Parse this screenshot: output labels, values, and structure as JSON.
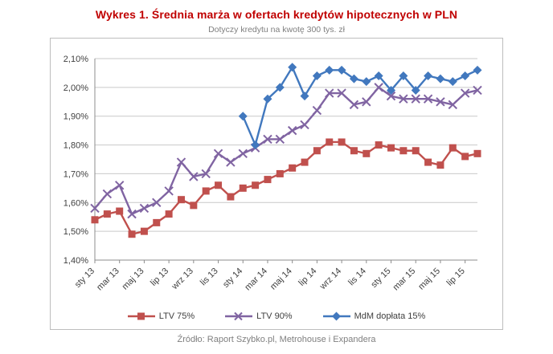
{
  "title": "Wykres 1. Średnia marża w ofertach kredytów hipotecznych w PLN",
  "subtitle": "Dotyczy kredytu na kwotę 300 tys. zł",
  "source": "Źródło: Raport Szybko.pl, Metrohouse i Expandera",
  "colors": {
    "title": "#c00000",
    "gridline": "#c9c9c9",
    "axis": "#8c8c8c",
    "tick_text": "#404040"
  },
  "chart_data": {
    "type": "line",
    "title": "Wykres 1. Średnia marża w ofertach kredytów hipotecznych w PLN",
    "subtitle": "Dotyczy kredytu na kwotę 300 tys. zł",
    "ylabel": "",
    "xlabel": "",
    "ylim": [
      1.4,
      2.1
    ],
    "grid": "horizontal",
    "legend_position": "bottom",
    "y_tick_labels": [
      "2,10%",
      "2,00%",
      "1,90%",
      "1,80%",
      "1,70%",
      "1,60%",
      "1,50%",
      "1,40%"
    ],
    "y_tick_values": [
      2.1,
      2.0,
      1.9,
      1.8,
      1.7,
      1.6,
      1.5,
      1.4
    ],
    "x_months": [
      "sty 13",
      "lut 13",
      "mar 13",
      "kwi 13",
      "maj 13",
      "cze 13",
      "lip 13",
      "sie 13",
      "wrz 13",
      "paź 13",
      "lis 13",
      "gru 13",
      "sty 14",
      "lut 14",
      "mar 14",
      "kwi 14",
      "maj 14",
      "cze 14",
      "lip 14",
      "sie 14",
      "wrz 14",
      "paź 14",
      "lis 14",
      "gru 14",
      "sty 15",
      "lut 15",
      "mar 15",
      "kwi 15",
      "maj 15",
      "cze 15",
      "lip 15",
      "sie 15"
    ],
    "x_tick_labels": [
      "sty 13",
      "mar 13",
      "maj 13",
      "lip 13",
      "wrz 13",
      "lis 13",
      "sty 14",
      "mar 14",
      "maj 14",
      "lip 14",
      "wrz 14",
      "lis 14",
      "sty 15",
      "mar 15",
      "maj 15",
      "lip 15"
    ],
    "x_tick_every": 2,
    "series": [
      {
        "name": "LTV 75%",
        "color": "#c0504d",
        "marker": "square",
        "values": [
          1.54,
          1.56,
          1.57,
          1.49,
          1.5,
          1.53,
          1.56,
          1.61,
          1.59,
          1.64,
          1.66,
          1.62,
          1.65,
          1.66,
          1.68,
          1.7,
          1.72,
          1.74,
          1.78,
          1.81,
          1.81,
          1.78,
          1.77,
          1.8,
          1.79,
          1.78,
          1.78,
          1.74,
          1.73,
          1.79,
          1.76,
          1.77
        ]
      },
      {
        "name": "LTV 90%",
        "color": "#8064a2",
        "marker": "x",
        "values": [
          1.58,
          1.63,
          1.66,
          1.56,
          1.58,
          1.6,
          1.64,
          1.74,
          1.69,
          1.7,
          1.77,
          1.74,
          1.77,
          1.79,
          1.82,
          1.82,
          1.85,
          1.87,
          1.92,
          1.98,
          1.98,
          1.94,
          1.95,
          2.0,
          1.97,
          1.96,
          1.96,
          1.96,
          1.95,
          1.94,
          1.98,
          1.99
        ]
      },
      {
        "name": "MdM dopłata 15%",
        "color": "#4178be",
        "marker": "diamond",
        "values": [
          null,
          null,
          null,
          null,
          null,
          null,
          null,
          null,
          null,
          null,
          null,
          null,
          1.9,
          1.8,
          1.96,
          2.0,
          2.07,
          1.97,
          2.04,
          2.06,
          2.06,
          2.03,
          2.02,
          2.04,
          1.99,
          2.04,
          1.99,
          2.04,
          2.03,
          2.02,
          2.04,
          2.06
        ]
      }
    ]
  }
}
